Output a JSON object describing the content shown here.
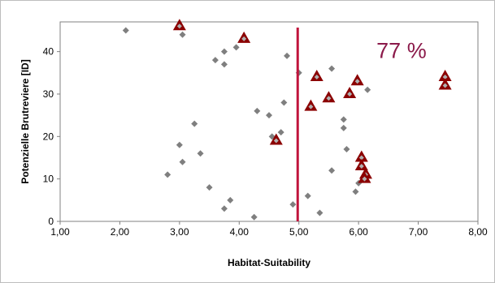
{
  "chart_data": {
    "type": "scatter",
    "xlabel": "Habitat-Suitability",
    "ylabel": "Potenzielle Brutreviere [ID]",
    "xlim": [
      1.0,
      8.0
    ],
    "ylim": [
      0,
      47
    ],
    "xticks": [
      1,
      2,
      3,
      4,
      5,
      6,
      7,
      8
    ],
    "xtick_labels": [
      "1,00",
      "2,00",
      "3,00",
      "4,00",
      "5,00",
      "6,00",
      "7,00",
      "8,00"
    ],
    "yticks": [
      0,
      10,
      20,
      30,
      40
    ],
    "ytick_labels": [
      "0",
      "10",
      "20",
      "30",
      "40"
    ],
    "grid": false,
    "threshold_line": {
      "x": 4.98,
      "color": "#c0143c"
    },
    "annotation": {
      "text": "77 %",
      "x": 6.3,
      "y": 40,
      "color": "#8b1a4a"
    },
    "series": [
      {
        "marker": "diamond",
        "color": "#7f7f7f",
        "points": [
          [
            2.1,
            45
          ],
          [
            3.05,
            44
          ],
          [
            3.75,
            40
          ],
          [
            3.95,
            41
          ],
          [
            3.6,
            38
          ],
          [
            3.75,
            37
          ],
          [
            4.8,
            39
          ],
          [
            5.0,
            35
          ],
          [
            5.55,
            36
          ],
          [
            6.15,
            31
          ],
          [
            4.75,
            28
          ],
          [
            4.3,
            26
          ],
          [
            4.5,
            25
          ],
          [
            3.25,
            23
          ],
          [
            5.75,
            24
          ],
          [
            5.75,
            22
          ],
          [
            4.7,
            21
          ],
          [
            4.55,
            20
          ],
          [
            5.8,
            17
          ],
          [
            3.0,
            18
          ],
          [
            3.35,
            16
          ],
          [
            3.05,
            14
          ],
          [
            5.55,
            12
          ],
          [
            2.8,
            11
          ],
          [
            6.0,
            9
          ],
          [
            3.5,
            8
          ],
          [
            5.95,
            7
          ],
          [
            5.15,
            6
          ],
          [
            3.85,
            5
          ],
          [
            4.9,
            4
          ],
          [
            3.75,
            3
          ],
          [
            5.35,
            2
          ],
          [
            4.25,
            1
          ]
        ]
      },
      {
        "marker": "triangle",
        "color": "#8b0000",
        "points": [
          [
            3.0,
            46
          ],
          [
            4.08,
            43
          ],
          [
            5.3,
            34
          ],
          [
            5.98,
            33
          ],
          [
            7.45,
            34
          ],
          [
            7.45,
            32
          ],
          [
            5.5,
            29
          ],
          [
            5.85,
            30
          ],
          [
            5.2,
            27
          ],
          [
            4.62,
            19
          ],
          [
            6.05,
            15
          ],
          [
            6.05,
            13
          ],
          [
            6.12,
            11
          ],
          [
            6.1,
            10
          ]
        ]
      }
    ]
  }
}
